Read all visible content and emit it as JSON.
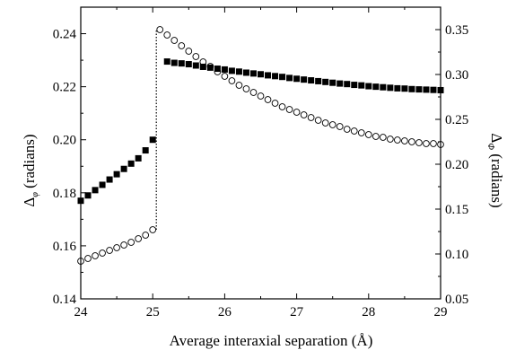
{
  "chart_data": {
    "type": "scatter",
    "xlabel": "Average interaxial separation (Å)",
    "ylabel_left": {
      "symbol": "Δ",
      "subscript": "φ",
      "text": "(radians)"
    },
    "ylabel_right": {
      "symbol": "Δ",
      "subscript": "Φ",
      "text": "(radians)"
    },
    "xlim": [
      24,
      29
    ],
    "ylim_left": [
      0.14,
      0.25
    ],
    "ylim_right": [
      0.05,
      0.375
    ],
    "x_ticks": [
      "24",
      "25",
      "26",
      "27",
      "28",
      "29"
    ],
    "y_ticks_left": [
      "0.14",
      "0.16",
      "0.18",
      "0.20",
      "0.22",
      "0.24"
    ],
    "y_ticks_right": [
      "0.05",
      "0.10",
      "0.15",
      "0.20",
      "0.25",
      "0.30",
      "0.35"
    ],
    "grid": false,
    "series": [
      {
        "axis": "left",
        "marker": "filled-square",
        "color": "#000000",
        "x": [
          24.0,
          24.1,
          24.2,
          24.3,
          24.4,
          24.5,
          24.6,
          24.7,
          24.8,
          24.9,
          25.0,
          25.2,
          25.3,
          25.4,
          25.5,
          25.6,
          25.7,
          25.8,
          25.9,
          26.0,
          26.1,
          26.2,
          26.3,
          26.4,
          26.5,
          26.6,
          26.7,
          26.8,
          26.9,
          27.0,
          27.1,
          27.2,
          27.3,
          27.4,
          27.5,
          27.6,
          27.7,
          27.8,
          27.9,
          28.0,
          28.1,
          28.2,
          28.3,
          28.4,
          28.5,
          28.6,
          28.7,
          28.8,
          28.9,
          29.0
        ],
        "y": [
          0.177,
          0.179,
          0.181,
          0.183,
          0.185,
          0.187,
          0.189,
          0.191,
          0.193,
          0.196,
          0.2,
          0.2295,
          0.229,
          0.2288,
          0.2285,
          0.228,
          0.2275,
          0.2272,
          0.2268,
          0.2265,
          0.226,
          0.2257,
          0.2253,
          0.225,
          0.2247,
          0.2243,
          0.224,
          0.2237,
          0.2233,
          0.223,
          0.2227,
          0.2224,
          0.2221,
          0.2218,
          0.2215,
          0.2212,
          0.221,
          0.2207,
          0.2205,
          0.2202,
          0.22,
          0.2198,
          0.2196,
          0.2194,
          0.2193,
          0.2191,
          0.219,
          0.2189,
          0.2188,
          0.2187
        ]
      },
      {
        "axis": "right",
        "marker": "open-circle",
        "color": "#000000",
        "x": [
          24.0,
          24.1,
          24.2,
          24.3,
          24.4,
          24.5,
          24.6,
          24.7,
          24.8,
          24.9,
          25.0,
          25.1,
          25.2,
          25.3,
          25.4,
          25.5,
          25.6,
          25.7,
          25.8,
          25.9,
          26.0,
          26.1,
          26.2,
          26.3,
          26.4,
          26.5,
          26.6,
          26.7,
          26.8,
          26.9,
          27.0,
          27.1,
          27.2,
          27.3,
          27.4,
          27.5,
          27.6,
          27.7,
          27.8,
          27.9,
          28.0,
          28.1,
          28.2,
          28.3,
          28.4,
          28.5,
          28.6,
          28.7,
          28.8,
          28.9,
          29.0
        ],
        "y": [
          0.092,
          0.095,
          0.098,
          0.101,
          0.104,
          0.107,
          0.11,
          0.113,
          0.117,
          0.121,
          0.127,
          0.35,
          0.344,
          0.338,
          0.332,
          0.326,
          0.32,
          0.314,
          0.309,
          0.303,
          0.298,
          0.293,
          0.288,
          0.284,
          0.28,
          0.276,
          0.272,
          0.268,
          0.264,
          0.261,
          0.258,
          0.255,
          0.252,
          0.249,
          0.246,
          0.244,
          0.242,
          0.239,
          0.237,
          0.235,
          0.233,
          0.231,
          0.23,
          0.228,
          0.227,
          0.226,
          0.225,
          0.224,
          0.223,
          0.223,
          0.222
        ]
      }
    ],
    "annotations": [
      {
        "type": "dotted-vertical-line",
        "x": 25.05,
        "axis": "right",
        "from": 0.127,
        "to": 0.35
      }
    ]
  }
}
